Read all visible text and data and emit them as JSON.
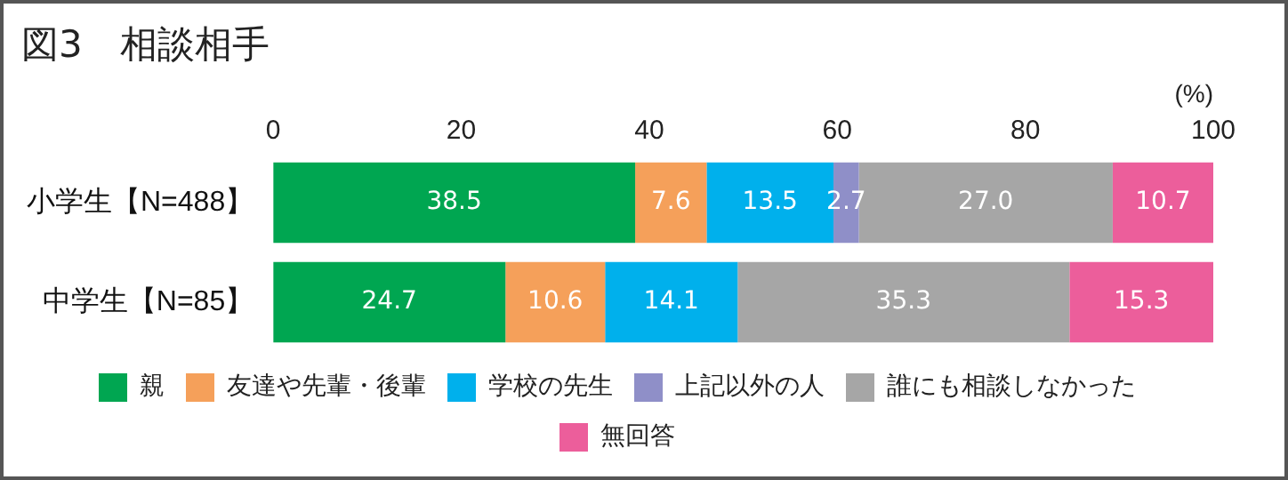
{
  "chart_data": {
    "type": "bar",
    "title": "図3　相談相手",
    "xlabel": "(%)",
    "orientation": "horizontal",
    "stacked": true,
    "grid": false,
    "legend": "bottom",
    "categories": [
      "小学生【N=488】",
      "中学生【N=85】"
    ],
    "xlim": [
      0,
      100
    ],
    "xticks": [
      0,
      20,
      40,
      60,
      80,
      100
    ],
    "series": [
      {
        "name": "親",
        "color": "#00a651",
        "values": [
          38.5,
          24.7
        ],
        "value_labels": [
          "38.5",
          "24.7"
        ]
      },
      {
        "name": "友達や先輩・後輩",
        "color": "#f5a05a",
        "values": [
          7.6,
          10.6
        ],
        "value_labels": [
          "7.6",
          "10.6"
        ]
      },
      {
        "name": "学校の先生",
        "color": "#00b0ec",
        "values": [
          13.5,
          14.1
        ],
        "value_labels": [
          "13.5",
          "14.1"
        ]
      },
      {
        "name": "上記以外の人",
        "color": "#8f8fc8",
        "values": [
          2.7,
          null
        ],
        "value_labels": [
          "2.7",
          null
        ]
      },
      {
        "name": "誰にも相談しなかった",
        "color": "#a6a6a6",
        "values": [
          27.0,
          35.3
        ],
        "value_labels": [
          "27.0",
          "35.3"
        ]
      },
      {
        "name": "無回答",
        "color": "#ec5e9b",
        "values": [
          10.7,
          15.3
        ],
        "value_labels": [
          "10.7",
          "15.3"
        ]
      }
    ]
  }
}
